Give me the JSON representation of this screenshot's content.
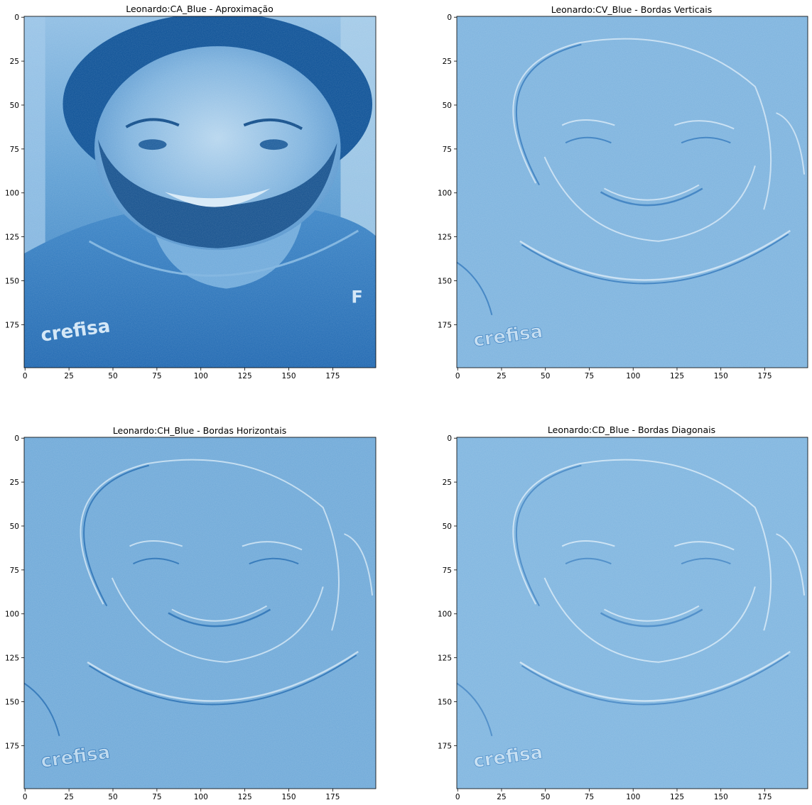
{
  "chart_data": [
    {
      "type": "heatmap",
      "title": "Leonardo:CA_Blue - Aproximação",
      "xticks": [
        "0",
        "25",
        "50",
        "75",
        "100",
        "125",
        "150",
        "175"
      ],
      "yticks": [
        "0",
        "25",
        "50",
        "75",
        "100",
        "125",
        "150",
        "175"
      ],
      "xlim": [
        0,
        200
      ],
      "ylim": [
        200,
        0
      ],
      "image": "wavelet approximation coefficients (blue channel) of a smiling bearded man wearing a 'crefisa' shirt",
      "overlay_text": "crefisa",
      "colors": {
        "dark": "#0a4f95",
        "mid": "#2f7bc0",
        "light": "#a9cde9",
        "bg": "#6aa6d6"
      }
    },
    {
      "type": "heatmap",
      "title": "Leonardo:CV_Blue - Bordas Verticais",
      "xticks": [
        "0",
        "25",
        "50",
        "75",
        "100",
        "125",
        "150",
        "175"
      ],
      "yticks": [
        "0",
        "25",
        "50",
        "75",
        "100",
        "125",
        "150",
        "175"
      ],
      "xlim": [
        0,
        200
      ],
      "ylim": [
        200,
        0
      ],
      "image": "vertical edge detail coefficients",
      "overlay_text": "crefisa",
      "colors": {
        "bg": "#7db3de",
        "edge_light": "#d6e8f6",
        "edge_dark": "#3c7fbf"
      }
    },
    {
      "type": "heatmap",
      "title": "Leonardo:CH_Blue - Bordas Horizontais",
      "xticks": [
        "0",
        "25",
        "50",
        "75",
        "100",
        "125",
        "150",
        "175"
      ],
      "yticks": [
        "0",
        "25",
        "50",
        "75",
        "100",
        "125",
        "150",
        "175"
      ],
      "xlim": [
        0,
        200
      ],
      "ylim": [
        200,
        0
      ],
      "image": "horizontal edge detail coefficients",
      "overlay_text": "crefisa",
      "colors": {
        "bg": "#6fa9d8",
        "edge_light": "#d2e6f5",
        "edge_dark": "#2f74b6"
      }
    },
    {
      "type": "heatmap",
      "title": "Leonardo:CD_Blue - Bordas Diagonais",
      "xticks": [
        "0",
        "25",
        "50",
        "75",
        "100",
        "125",
        "150",
        "175"
      ],
      "yticks": [
        "0",
        "25",
        "50",
        "75",
        "100",
        "125",
        "150",
        "175"
      ],
      "xlim": [
        0,
        200
      ],
      "ylim": [
        200,
        0
      ],
      "image": "diagonal edge detail coefficients",
      "overlay_text": "crefisa",
      "colors": {
        "bg": "#7fb5df",
        "edge_light": "#d8eaf7",
        "edge_dark": "#4a8ac6"
      }
    }
  ]
}
